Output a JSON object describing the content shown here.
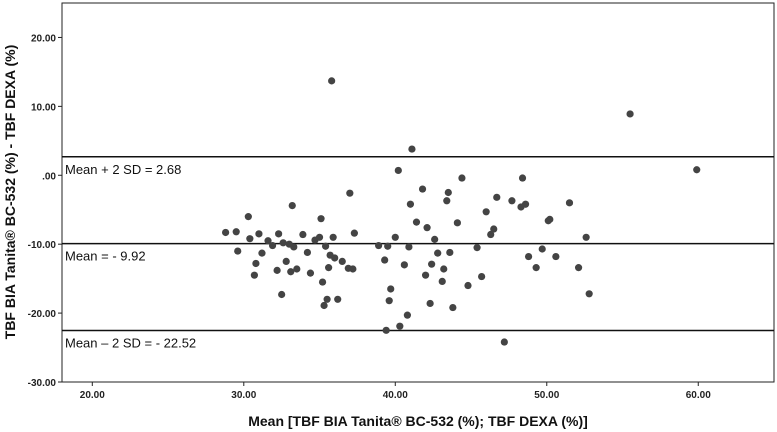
{
  "chart_data": {
    "type": "scatter",
    "xlabel": "Mean [TBF BIA Tanita® BC-532 (%); TBF DEXA (%)]",
    "ylabel": "TBF BIA Tanita® BC-532 (%) - TBF DEXA (%)",
    "xlim": [
      18,
      65
    ],
    "ylim": [
      -30,
      25
    ],
    "x_ticks": [
      20,
      30,
      40,
      50,
      60
    ],
    "y_ticks": [
      20,
      10,
      0,
      -10,
      -20,
      -30
    ],
    "x_tick_labels": [
      "20.00",
      "30.00",
      "40.00",
      "50.00",
      "60.00"
    ],
    "y_tick_labels": [
      "20.00",
      "10.00",
      ".00",
      "-10.00",
      "-20.00",
      "-30.00"
    ],
    "grid": false,
    "legend": "none",
    "marker_color": "#444444",
    "line_color": "#111111",
    "reference_lines": [
      {
        "value": 2.68,
        "label": "Mean + 2 SD = 2.68"
      },
      {
        "value": -9.92,
        "label": "Mean = - 9.92"
      },
      {
        "value": -22.52,
        "label": "Mean – 2 SD = - 22.52"
      }
    ],
    "points": [
      [
        28.8,
        -8.3
      ],
      [
        29.5,
        -8.2
      ],
      [
        29.6,
        -11.0
      ],
      [
        30.3,
        -6.0
      ],
      [
        30.4,
        -9.2
      ],
      [
        30.7,
        -14.5
      ],
      [
        30.8,
        -12.8
      ],
      [
        31.0,
        -8.5
      ],
      [
        31.2,
        -11.3
      ],
      [
        31.6,
        -9.5
      ],
      [
        31.9,
        -10.2
      ],
      [
        32.2,
        -13.8
      ],
      [
        32.3,
        -8.5
      ],
      [
        32.5,
        -17.3
      ],
      [
        32.6,
        -9.8
      ],
      [
        32.8,
        -12.5
      ],
      [
        33.0,
        -10.0
      ],
      [
        33.1,
        -14.0
      ],
      [
        33.2,
        -4.4
      ],
      [
        33.3,
        -10.4
      ],
      [
        33.5,
        -13.6
      ],
      [
        33.9,
        -8.6
      ],
      [
        34.2,
        -11.2
      ],
      [
        34.4,
        -14.2
      ],
      [
        34.7,
        -9.4
      ],
      [
        35.0,
        -9.0
      ],
      [
        35.1,
        -6.3
      ],
      [
        35.2,
        -15.5
      ],
      [
        35.3,
        -18.9
      ],
      [
        35.4,
        -10.3
      ],
      [
        35.5,
        -18.0
      ],
      [
        35.6,
        -13.4
      ],
      [
        35.7,
        -11.6
      ],
      [
        35.8,
        13.7
      ],
      [
        35.9,
        -9.0
      ],
      [
        36.0,
        -12.0
      ],
      [
        36.2,
        -18.0
      ],
      [
        36.5,
        -12.5
      ],
      [
        36.9,
        -13.5
      ],
      [
        37.0,
        -2.6
      ],
      [
        37.2,
        -13.6
      ],
      [
        37.3,
        -8.4
      ],
      [
        38.9,
        -10.2
      ],
      [
        39.3,
        -12.3
      ],
      [
        39.4,
        -22.5
      ],
      [
        39.5,
        -10.3
      ],
      [
        39.6,
        -18.2
      ],
      [
        39.7,
        -16.5
      ],
      [
        40.0,
        -9.0
      ],
      [
        40.2,
        0.7
      ],
      [
        40.3,
        -21.9
      ],
      [
        40.6,
        -13.0
      ],
      [
        40.8,
        -20.3
      ],
      [
        40.9,
        -10.4
      ],
      [
        41.0,
        -4.2
      ],
      [
        41.1,
        3.8
      ],
      [
        41.4,
        -6.8
      ],
      [
        41.8,
        -2.0
      ],
      [
        42.0,
        -14.5
      ],
      [
        42.1,
        -7.6
      ],
      [
        42.3,
        -18.6
      ],
      [
        42.4,
        -12.9
      ],
      [
        42.6,
        -9.3
      ],
      [
        42.8,
        -11.3
      ],
      [
        43.1,
        -15.4
      ],
      [
        43.2,
        -13.6
      ],
      [
        43.4,
        -3.7
      ],
      [
        43.5,
        -2.5
      ],
      [
        43.6,
        -11.2
      ],
      [
        43.8,
        -19.2
      ],
      [
        44.1,
        -6.9
      ],
      [
        44.4,
        -0.4
      ],
      [
        44.8,
        -16.0
      ],
      [
        45.4,
        -10.5
      ],
      [
        45.7,
        -14.7
      ],
      [
        46.0,
        -5.3
      ],
      [
        46.3,
        -8.6
      ],
      [
        46.5,
        -7.8
      ],
      [
        46.7,
        -3.2
      ],
      [
        47.2,
        -24.2
      ],
      [
        47.7,
        -3.7
      ],
      [
        48.3,
        -4.6
      ],
      [
        48.4,
        -0.4
      ],
      [
        48.6,
        -4.2
      ],
      [
        48.8,
        -11.8
      ],
      [
        49.3,
        -13.4
      ],
      [
        49.7,
        -10.7
      ],
      [
        50.1,
        -6.6
      ],
      [
        50.2,
        -6.4
      ],
      [
        50.6,
        -11.8
      ],
      [
        51.5,
        -4.0
      ],
      [
        52.1,
        -13.4
      ],
      [
        52.6,
        -9.0
      ],
      [
        52.8,
        -17.2
      ],
      [
        55.5,
        8.9
      ],
      [
        59.9,
        0.8
      ]
    ]
  }
}
